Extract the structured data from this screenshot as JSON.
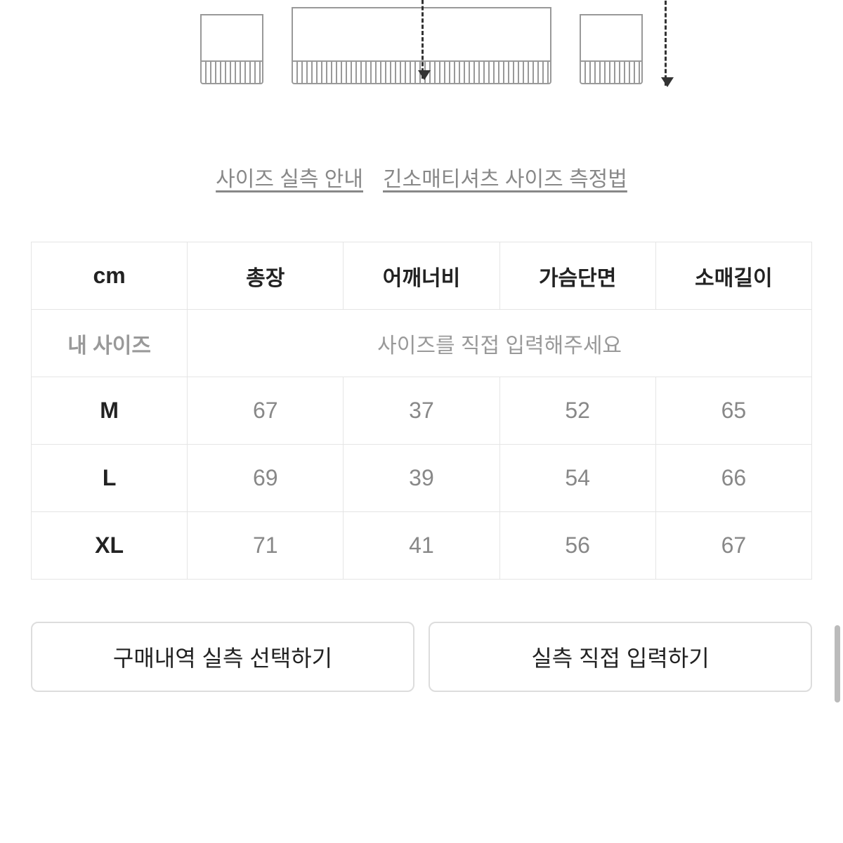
{
  "links": {
    "size_guide": "사이즈 실측 안내",
    "measurement_method": "긴소매티셔츠 사이즈 측정법"
  },
  "table": {
    "unit_header": "cm",
    "columns": [
      "총장",
      "어깨너비",
      "가슴단면",
      "소매길이"
    ],
    "my_size_label": "내 사이즈",
    "my_size_placeholder": "사이즈를 직접 입력해주세요",
    "rows": [
      {
        "label": "M",
        "values": [
          "67",
          "37",
          "52",
          "65"
        ]
      },
      {
        "label": "L",
        "values": [
          "69",
          "39",
          "54",
          "66"
        ]
      },
      {
        "label": "XL",
        "values": [
          "71",
          "41",
          "56",
          "67"
        ]
      }
    ]
  },
  "buttons": {
    "select_from_history": "구매내역 실측 선택하기",
    "enter_manually": "실측 직접 입력하기"
  },
  "styling": {
    "border_color": "#e5e5e5",
    "text_primary": "#222222",
    "text_secondary": "#888888",
    "text_muted": "#999999",
    "link_color": "#888888",
    "background": "#ffffff",
    "button_border": "#dddddd",
    "diagram_line": "#999999",
    "arrow_color": "#333333",
    "header_fontsize": 30,
    "cell_fontsize": 34,
    "label_fontsize": 32,
    "button_fontsize": 32,
    "link_fontsize": 30
  }
}
